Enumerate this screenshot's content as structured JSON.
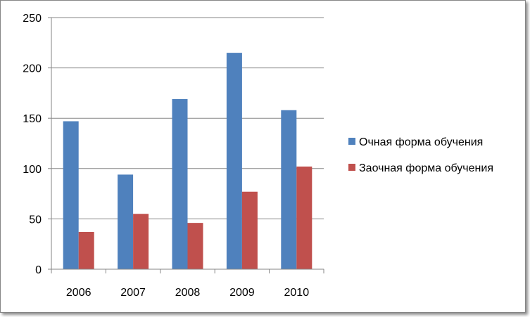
{
  "chart_data": {
    "type": "bar",
    "title": "",
    "xlabel": "",
    "ylabel": "",
    "categories": [
      "2006",
      "2007",
      "2008",
      "2009",
      "2010"
    ],
    "series": [
      {
        "name": "Очная форма обучения",
        "color": "#4f81bd",
        "values": [
          147,
          94,
          169,
          215,
          158
        ]
      },
      {
        "name": "Заочная форма обучения",
        "color": "#c0504d",
        "values": [
          37,
          55,
          46,
          77,
          102
        ]
      }
    ],
    "ylim": [
      0,
      250
    ],
    "yticks": [
      "0",
      "50",
      "100",
      "150",
      "200",
      "250"
    ],
    "grid": true,
    "legend_position": "right"
  }
}
